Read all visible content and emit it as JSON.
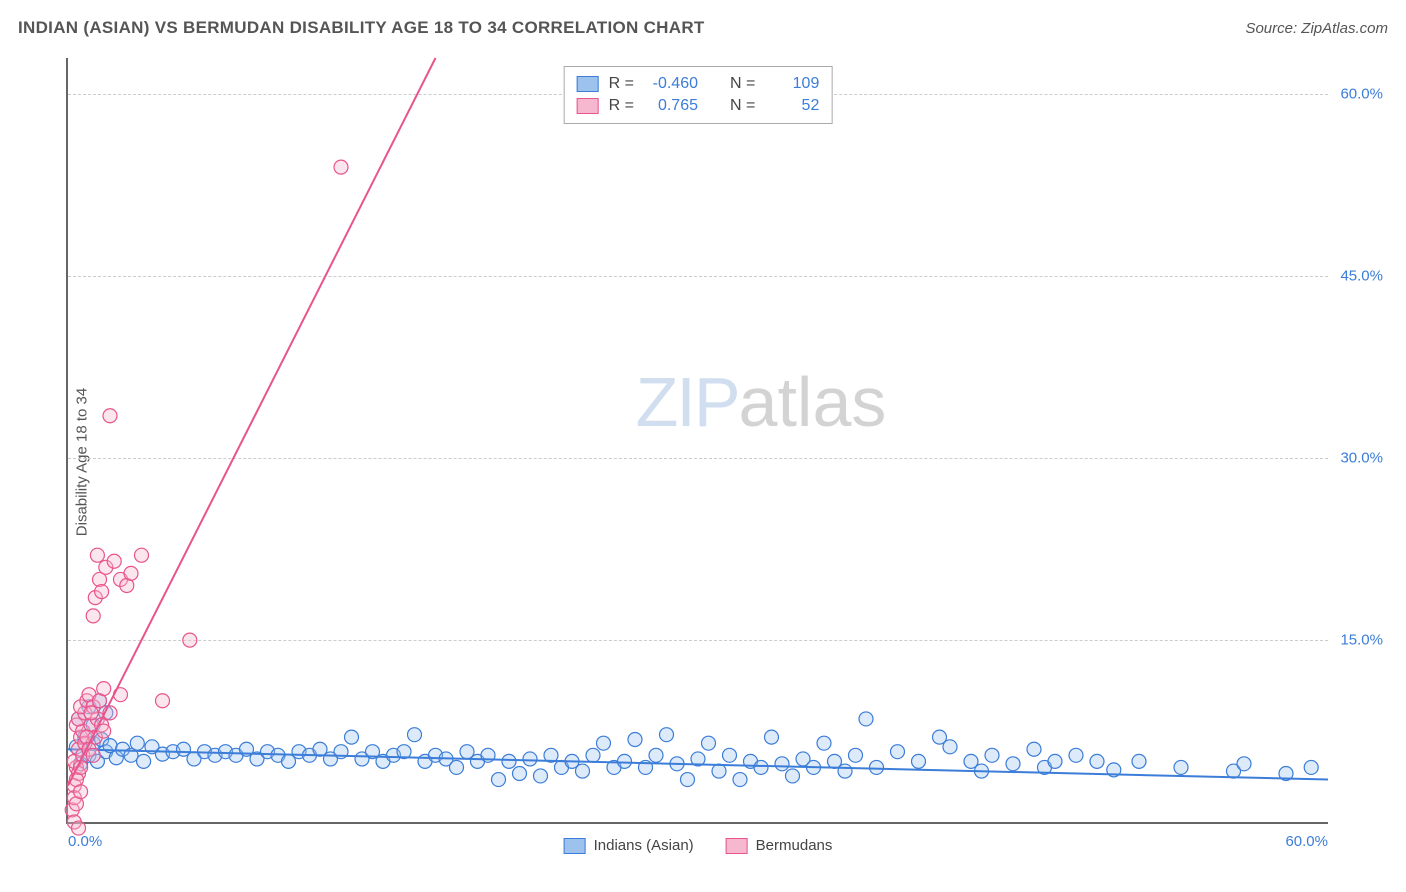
{
  "header": {
    "title": "INDIAN (ASIAN) VS BERMUDAN DISABILITY AGE 18 TO 34 CORRELATION CHART",
    "source": "Source: ZipAtlas.com"
  },
  "chart": {
    "type": "scatter",
    "y_axis_title": "Disability Age 18 to 34",
    "xlim": [
      0,
      60
    ],
    "ylim": [
      0,
      63
    ],
    "x_ticks": [
      {
        "pos": 0,
        "label": "0.0%"
      },
      {
        "pos": 60,
        "label": "60.0%"
      }
    ],
    "y_ticks": [
      {
        "pos": 15,
        "label": "15.0%"
      },
      {
        "pos": 30,
        "label": "30.0%"
      },
      {
        "pos": 45,
        "label": "45.0%"
      },
      {
        "pos": 60,
        "label": "60.0%"
      }
    ],
    "grid_color": "#cccccc",
    "axis_color": "#666666",
    "background_color": "#ffffff",
    "marker_radius": 7,
    "marker_stroke_width": 1.2,
    "marker_fill_opacity": 0.35,
    "line_width": 2,
    "series": [
      {
        "name": "Indians (Asian)",
        "color_stroke": "#3b7dd8",
        "color_fill": "#9dc2ee",
        "R": "-0.460",
        "N": "109",
        "trend": {
          "x1": 0,
          "y1": 6.0,
          "x2": 60,
          "y2": 3.5
        },
        "points": [
          [
            0.4,
            6.2
          ],
          [
            0.6,
            4.8
          ],
          [
            0.8,
            7.0
          ],
          [
            1.0,
            5.5
          ],
          [
            1.2,
            6.5
          ],
          [
            1.4,
            5.0
          ],
          [
            1.6,
            6.8
          ],
          [
            1.8,
            5.8
          ],
          [
            2.0,
            6.3
          ],
          [
            2.3,
            5.3
          ],
          [
            2.6,
            6.0
          ],
          [
            3.0,
            5.5
          ],
          [
            3.3,
            6.5
          ],
          [
            3.6,
            5.0
          ],
          [
            4.0,
            6.2
          ],
          [
            4.5,
            5.6
          ],
          [
            5.0,
            5.8
          ],
          [
            5.5,
            6.0
          ],
          [
            6.0,
            5.2
          ],
          [
            6.5,
            5.8
          ],
          [
            7.0,
            5.5
          ],
          [
            7.5,
            5.8
          ],
          [
            8.0,
            5.5
          ],
          [
            8.5,
            6.0
          ],
          [
            9.0,
            5.2
          ],
          [
            9.5,
            5.8
          ],
          [
            10.0,
            5.5
          ],
          [
            10.5,
            5.0
          ],
          [
            11.0,
            5.8
          ],
          [
            11.5,
            5.5
          ],
          [
            12.0,
            6.0
          ],
          [
            12.5,
            5.2
          ],
          [
            13.0,
            5.8
          ],
          [
            13.5,
            7.0
          ],
          [
            14.0,
            5.2
          ],
          [
            14.5,
            5.8
          ],
          [
            15.0,
            5.0
          ],
          [
            15.5,
            5.5
          ],
          [
            16.0,
            5.8
          ],
          [
            16.5,
            7.2
          ],
          [
            17.0,
            5.0
          ],
          [
            17.5,
            5.5
          ],
          [
            18.0,
            5.2
          ],
          [
            18.5,
            4.5
          ],
          [
            19.0,
            5.8
          ],
          [
            19.5,
            5.0
          ],
          [
            20.0,
            5.5
          ],
          [
            20.5,
            3.5
          ],
          [
            21.0,
            5.0
          ],
          [
            21.5,
            4.0
          ],
          [
            22.0,
            5.2
          ],
          [
            22.5,
            3.8
          ],
          [
            23.0,
            5.5
          ],
          [
            23.5,
            4.5
          ],
          [
            24.0,
            5.0
          ],
          [
            24.5,
            4.2
          ],
          [
            25.0,
            5.5
          ],
          [
            25.5,
            6.5
          ],
          [
            26.0,
            4.5
          ],
          [
            26.5,
            5.0
          ],
          [
            27.0,
            6.8
          ],
          [
            27.5,
            4.5
          ],
          [
            28.0,
            5.5
          ],
          [
            28.5,
            7.2
          ],
          [
            29.0,
            4.8
          ],
          [
            29.5,
            3.5
          ],
          [
            30.0,
            5.2
          ],
          [
            30.5,
            6.5
          ],
          [
            31.0,
            4.2
          ],
          [
            31.5,
            5.5
          ],
          [
            32.0,
            3.5
          ],
          [
            32.5,
            5.0
          ],
          [
            33.0,
            4.5
          ],
          [
            33.5,
            7.0
          ],
          [
            34.0,
            4.8
          ],
          [
            34.5,
            3.8
          ],
          [
            35.0,
            5.2
          ],
          [
            35.5,
            4.5
          ],
          [
            36.0,
            6.5
          ],
          [
            36.5,
            5.0
          ],
          [
            37.0,
            4.2
          ],
          [
            37.5,
            5.5
          ],
          [
            38.0,
            8.5
          ],
          [
            38.5,
            4.5
          ],
          [
            39.5,
            5.8
          ],
          [
            40.5,
            5.0
          ],
          [
            41.5,
            7.0
          ],
          [
            42.0,
            6.2
          ],
          [
            43.0,
            5.0
          ],
          [
            43.5,
            4.2
          ],
          [
            44.0,
            5.5
          ],
          [
            45.0,
            4.8
          ],
          [
            46.0,
            6.0
          ],
          [
            46.5,
            4.5
          ],
          [
            47.0,
            5.0
          ],
          [
            48.0,
            5.5
          ],
          [
            49.0,
            5.0
          ],
          [
            49.8,
            4.3
          ],
          [
            51.0,
            5.0
          ],
          [
            53.0,
            4.5
          ],
          [
            55.5,
            4.2
          ],
          [
            56.0,
            4.8
          ],
          [
            58.0,
            4.0
          ],
          [
            59.2,
            4.5
          ],
          [
            0.5,
            8.5
          ],
          [
            1.0,
            9.5
          ],
          [
            1.2,
            8.0
          ],
          [
            1.5,
            10.0
          ],
          [
            1.8,
            9.0
          ]
        ]
      },
      {
        "name": "Bermudans",
        "color_stroke": "#e8548b",
        "color_fill": "#f5b8ce",
        "R": "0.765",
        "N": "52",
        "trend": {
          "x1": 0,
          "y1": 3.0,
          "x2": 17.5,
          "y2": 63
        },
        "points": [
          [
            0.2,
            1.0
          ],
          [
            0.3,
            3.0
          ],
          [
            0.4,
            4.5
          ],
          [
            0.5,
            6.0
          ],
          [
            0.3,
            5.0
          ],
          [
            0.6,
            7.0
          ],
          [
            0.4,
            8.0
          ],
          [
            0.7,
            7.5
          ],
          [
            0.5,
            8.5
          ],
          [
            0.8,
            9.0
          ],
          [
            0.6,
            9.5
          ],
          [
            0.3,
            2.0
          ],
          [
            0.9,
            10.0
          ],
          [
            0.5,
            4.0
          ],
          [
            1.0,
            10.5
          ],
          [
            0.4,
            3.5
          ],
          [
            1.1,
            8.0
          ],
          [
            0.7,
            5.5
          ],
          [
            1.2,
            9.5
          ],
          [
            0.8,
            6.5
          ],
          [
            1.3,
            7.0
          ],
          [
            0.6,
            4.5
          ],
          [
            1.4,
            8.5
          ],
          [
            0.9,
            7.0
          ],
          [
            1.5,
            10.0
          ],
          [
            1.0,
            6.0
          ],
          [
            1.6,
            8.0
          ],
          [
            1.1,
            9.0
          ],
          [
            1.7,
            7.5
          ],
          [
            1.2,
            5.5
          ],
          [
            1.2,
            17.0
          ],
          [
            1.5,
            20.0
          ],
          [
            1.8,
            21.0
          ],
          [
            1.3,
            18.5
          ],
          [
            1.6,
            19.0
          ],
          [
            1.4,
            22.0
          ],
          [
            2.5,
            20.0
          ],
          [
            2.2,
            21.5
          ],
          [
            2.8,
            19.5
          ],
          [
            3.0,
            20.5
          ],
          [
            3.5,
            22.0
          ],
          [
            0.3,
            0.0
          ],
          [
            0.5,
            -0.5
          ],
          [
            4.5,
            10.0
          ],
          [
            5.8,
            15.0
          ],
          [
            2.0,
            33.5
          ],
          [
            13.0,
            54.0
          ],
          [
            1.7,
            11.0
          ],
          [
            2.0,
            9.0
          ],
          [
            0.4,
            1.5
          ],
          [
            0.6,
            2.5
          ],
          [
            2.5,
            10.5
          ]
        ]
      }
    ],
    "bottom_legend": [
      {
        "label": "Indians (Asian)",
        "stroke": "#3b7dd8",
        "fill": "#9dc2ee"
      },
      {
        "label": "Bermudans",
        "stroke": "#e8548b",
        "fill": "#f5b8ce"
      }
    ],
    "watermark": {
      "part1": "ZIP",
      "part2": "atlas"
    }
  }
}
